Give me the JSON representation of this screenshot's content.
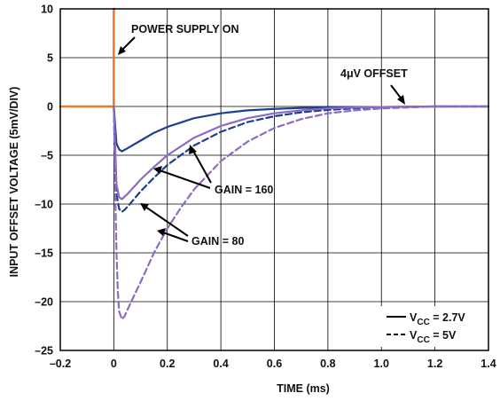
{
  "chart_data": {
    "type": "line",
    "xlabel": "TIME (ms)",
    "ylabel": "INPUT OFFSET VOLTAGE (5mV/DIV)",
    "xlim": [
      -0.2,
      1.4
    ],
    "ylim": [
      -25,
      10
    ],
    "x_ticks": [
      -0.2,
      0,
      0.2,
      0.4,
      0.6,
      0.8,
      1.0,
      1.2,
      1.4
    ],
    "x_tick_labels": [
      "–0.2",
      "0",
      "0.2",
      "0.4",
      "0.6",
      "0.8",
      "1.0",
      "1.2",
      "1.4"
    ],
    "y_ticks": [
      10,
      5,
      0,
      -5,
      -10,
      -15,
      -20,
      -25
    ],
    "y_tick_labels": [
      "10",
      "5",
      "0",
      "–5",
      "–10",
      "–15",
      "–20",
      "–25"
    ],
    "grid": true,
    "legend_position": "bottom-right",
    "legend": [
      {
        "label_main": "V",
        "label_sub": "CC",
        "label_rest": " = 2.7V",
        "line_style": "solid"
      },
      {
        "label_main": "V",
        "label_sub": "CC",
        "label_rest": " = 5V",
        "line_style": "dashed"
      }
    ],
    "annotations": [
      {
        "text": "POWER SUPPLY ON"
      },
      {
        "text": "4μV OFFSET"
      },
      {
        "text": "GAIN = 160"
      },
      {
        "text": "GAIN = 80"
      }
    ],
    "colors": {
      "power_supply": "#e8782a",
      "gain160": "#1f3f8f",
      "gain80": "#8c6cc0",
      "grid": "#000000"
    },
    "series": [
      {
        "group": "power",
        "style": "solid",
        "x": [
          -0.2,
          0,
          0,
          0.003
        ],
        "y": [
          0,
          0,
          10,
          10
        ]
      },
      {
        "group": "gain160",
        "style": "solid",
        "x": [
          0,
          0.005,
          0.01,
          0.02,
          0.03,
          0.05,
          0.1,
          0.15,
          0.2,
          0.3,
          0.4,
          0.5,
          0.6,
          0.7,
          0.8,
          1.0,
          1.2,
          1.4
        ],
        "y": [
          0,
          -2,
          -3.8,
          -4.4,
          -4.6,
          -4.3,
          -3.5,
          -2.7,
          -2.1,
          -1.2,
          -0.7,
          -0.4,
          -0.25,
          -0.15,
          -0.1,
          -0.05,
          0,
          0
        ]
      },
      {
        "group": "gain160",
        "style": "dashed",
        "x": [
          0,
          0.005,
          0.01,
          0.02,
          0.03,
          0.04,
          0.06,
          0.1,
          0.15,
          0.2,
          0.3,
          0.4,
          0.5,
          0.6,
          0.7,
          0.8,
          0.9,
          1.0,
          1.2,
          1.4
        ],
        "y": [
          0,
          -5,
          -9,
          -10.5,
          -10.8,
          -10.6,
          -10,
          -8.7,
          -7.3,
          -6,
          -4,
          -2.6,
          -1.6,
          -1,
          -0.6,
          -0.35,
          -0.2,
          -0.1,
          0,
          0
        ]
      },
      {
        "group": "gain80",
        "style": "solid",
        "x": [
          0,
          0.005,
          0.01,
          0.02,
          0.03,
          0.05,
          0.08,
          0.1,
          0.15,
          0.2,
          0.3,
          0.4,
          0.5,
          0.6,
          0.7,
          0.8,
          0.9,
          1.0,
          1.2,
          1.4
        ],
        "y": [
          0,
          -4,
          -8,
          -9.3,
          -9.5,
          -9,
          -8.1,
          -7.5,
          -6.2,
          -5,
          -3.2,
          -2,
          -1.2,
          -0.7,
          -0.4,
          -0.2,
          -0.1,
          -0.05,
          0,
          0
        ]
      },
      {
        "group": "gain80",
        "style": "dashed",
        "x": [
          0,
          0.005,
          0.01,
          0.015,
          0.02,
          0.03,
          0.04,
          0.06,
          0.1,
          0.15,
          0.2,
          0.25,
          0.3,
          0.4,
          0.5,
          0.6,
          0.7,
          0.8,
          0.9,
          1.0,
          1.1,
          1.2,
          1.4
        ],
        "y": [
          0,
          -8,
          -15,
          -19,
          -21,
          -21.8,
          -21.5,
          -20.3,
          -18,
          -15,
          -12.5,
          -10.4,
          -8.5,
          -5.6,
          -3.6,
          -2.2,
          -1.3,
          -0.7,
          -0.4,
          -0.2,
          -0.1,
          0,
          0
        ]
      }
    ]
  }
}
